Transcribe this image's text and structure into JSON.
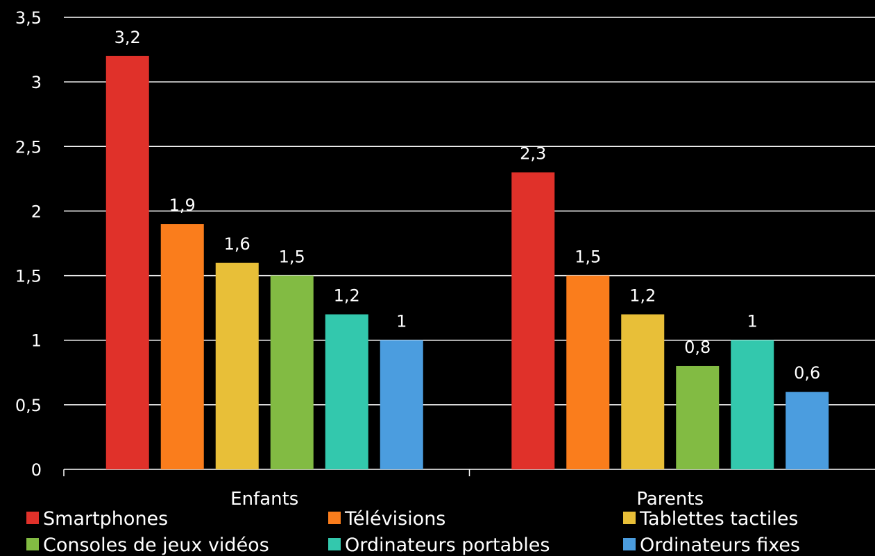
{
  "chart_data": {
    "type": "bar",
    "categories": [
      "Enfants",
      "Parents"
    ],
    "series": [
      {
        "name": "Smartphones",
        "values": [
          3.2,
          2.3
        ],
        "color": "#e0312a"
      },
      {
        "name": "Télévisions",
        "values": [
          1.9,
          1.5
        ],
        "color": "#fa7d1c"
      },
      {
        "name": "Tablettes tactiles",
        "values": [
          1.6,
          1.2
        ],
        "color": "#e8bf38"
      },
      {
        "name": "Consoles de jeux vidéos",
        "values": [
          1.5,
          0.8
        ],
        "color": "#82bb43"
      },
      {
        "name": "Ordinateurs portables",
        "values": [
          1.2,
          1.0
        ],
        "color": "#33c8ad"
      },
      {
        "name": "Ordinateurs fixes",
        "values": [
          1.0,
          0.6
        ],
        "color": "#4b9ddf"
      }
    ],
    "data_labels": [
      [
        "3,2",
        "2,3"
      ],
      [
        "1,9",
        "1,5"
      ],
      [
        "1,6",
        "1,2"
      ],
      [
        "1,5",
        "0,8"
      ],
      [
        "1,2",
        "1"
      ],
      [
        "1",
        "0,6"
      ]
    ],
    "y_ticks": [
      0,
      0.5,
      1,
      1.5,
      2,
      2.5,
      3,
      3.5
    ],
    "y_tick_labels": [
      "0",
      "0,5",
      "1",
      "1,5",
      "2",
      "2,5",
      "3",
      "3,5"
    ],
    "ylim": [
      0,
      3.5
    ],
    "title": "",
    "xlabel": "",
    "ylabel": "",
    "grid": true,
    "legend_position": "bottom",
    "colors": {
      "background": "#000000",
      "text": "#ffffff",
      "grid": "#ffffff"
    }
  }
}
